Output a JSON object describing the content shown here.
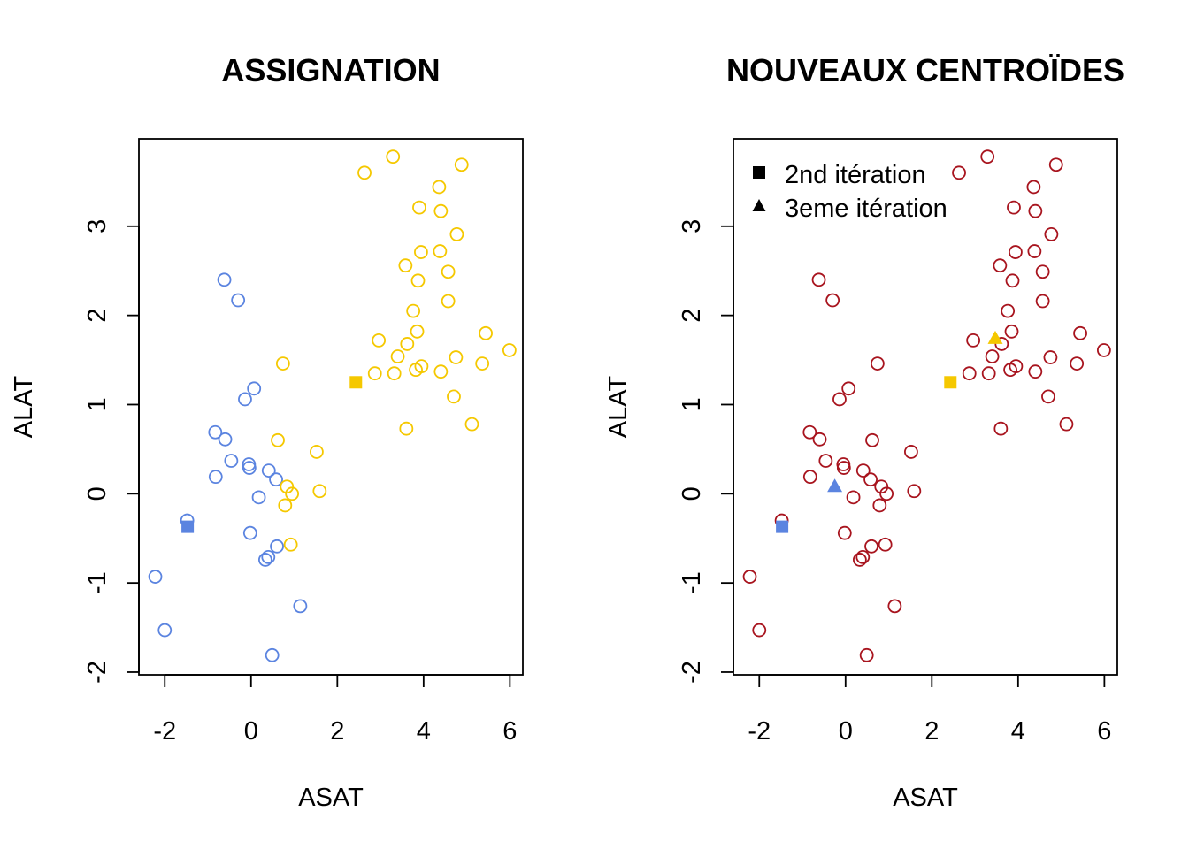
{
  "colors": {
    "cluster1": "#5B84E0",
    "cluster2": "#F5C800",
    "uniform": "#A8141E",
    "axis": "#000000"
  },
  "shared": {
    "xlabel": "ASAT",
    "ylabel": "ALAT",
    "xlim": [
      -2.6,
      6.3
    ],
    "ylim": [
      -2.03,
      3.98
    ],
    "xticks": [
      -2,
      0,
      2,
      4,
      6
    ],
    "yticks": [
      -2,
      -1,
      0,
      1,
      2,
      3
    ],
    "points": [
      [
        -2.22,
        -0.93,
        1
      ],
      [
        -2.0,
        -1.53,
        1
      ],
      [
        -1.48,
        -0.3,
        1
      ],
      [
        -0.62,
        2.4,
        1
      ],
      [
        -0.3,
        2.17,
        1
      ],
      [
        -0.83,
        0.69,
        1
      ],
      [
        -0.6,
        0.61,
        1
      ],
      [
        -0.82,
        0.19,
        1
      ],
      [
        -0.46,
        0.37,
        1
      ],
      [
        -0.05,
        0.33,
        1
      ],
      [
        -0.04,
        0.29,
        1
      ],
      [
        -0.14,
        1.06,
        1
      ],
      [
        0.07,
        1.18,
        1
      ],
      [
        0.18,
        -0.04,
        1
      ],
      [
        0.41,
        0.26,
        1
      ],
      [
        0.58,
        0.16,
        1
      ],
      [
        -0.02,
        -0.44,
        1
      ],
      [
        0.6,
        -0.59,
        1
      ],
      [
        0.33,
        -0.74,
        1
      ],
      [
        0.4,
        -0.71,
        1
      ],
      [
        1.14,
        -1.26,
        1
      ],
      [
        0.49,
        -1.81,
        1
      ],
      [
        0.74,
        1.46,
        2
      ],
      [
        0.62,
        0.6,
        2
      ],
      [
        1.52,
        0.47,
        2
      ],
      [
        1.59,
        0.03,
        2
      ],
      [
        0.83,
        0.08,
        2
      ],
      [
        0.95,
        0.0,
        2
      ],
      [
        0.79,
        -0.13,
        2
      ],
      [
        0.92,
        -0.57,
        2
      ],
      [
        2.63,
        3.6,
        2
      ],
      [
        3.29,
        3.78,
        2
      ],
      [
        4.88,
        3.69,
        2
      ],
      [
        4.36,
        3.44,
        2
      ],
      [
        3.9,
        3.21,
        2
      ],
      [
        4.4,
        3.17,
        2
      ],
      [
        4.77,
        2.91,
        2
      ],
      [
        3.94,
        2.71,
        2
      ],
      [
        4.38,
        2.72,
        2
      ],
      [
        3.58,
        2.56,
        2
      ],
      [
        4.57,
        2.49,
        2
      ],
      [
        3.87,
        2.39,
        2
      ],
      [
        4.57,
        2.16,
        2
      ],
      [
        3.76,
        2.05,
        2
      ],
      [
        5.44,
        1.8,
        2
      ],
      [
        3.85,
        1.82,
        2
      ],
      [
        2.96,
        1.72,
        2
      ],
      [
        3.62,
        1.68,
        2
      ],
      [
        5.99,
        1.61,
        2
      ],
      [
        3.4,
        1.54,
        2
      ],
      [
        4.75,
        1.53,
        2
      ],
      [
        5.36,
        1.46,
        2
      ],
      [
        3.95,
        1.43,
        2
      ],
      [
        3.82,
        1.39,
        2
      ],
      [
        2.87,
        1.35,
        2
      ],
      [
        3.32,
        1.35,
        2
      ],
      [
        4.4,
        1.37,
        2
      ],
      [
        4.7,
        1.09,
        2
      ],
      [
        3.6,
        0.73,
        2
      ],
      [
        5.12,
        0.78,
        2
      ]
    ]
  },
  "panels": [
    {
      "title": "ASSIGNATION",
      "color_mode": "cluster",
      "centroids": [
        {
          "shape": "square",
          "x": -1.47,
          "y": -0.37,
          "cluster": 1
        },
        {
          "shape": "square",
          "x": 2.43,
          "y": 1.25,
          "cluster": 2
        }
      ],
      "legend": null
    },
    {
      "title": "NOUVEAUX CENTROÏDES",
      "color_mode": "uniform",
      "centroids": [
        {
          "shape": "square",
          "x": -1.47,
          "y": -0.37,
          "cluster": 1
        },
        {
          "shape": "square",
          "x": 2.43,
          "y": 1.25,
          "cluster": 2
        },
        {
          "shape": "triangle",
          "x": -0.25,
          "y": 0.08,
          "cluster": 1
        },
        {
          "shape": "triangle",
          "x": 3.47,
          "y": 1.74,
          "cluster": 2
        }
      ],
      "legend": {
        "position": "top-left",
        "items": [
          {
            "shape": "square",
            "label": "2nd itération"
          },
          {
            "shape": "triangle",
            "label": "3eme itération"
          }
        ]
      }
    }
  ],
  "chart_data": [
    {
      "type": "scatter",
      "title": "ASSIGNATION",
      "xlabel": "ASAT",
      "ylabel": "ALAT",
      "xlim": [
        -2.6,
        6.3
      ],
      "ylim": [
        -2.03,
        3.98
      ],
      "grid": false,
      "series": [
        {
          "values": "shared.points (cluster 1, blue open circles)"
        },
        {
          "values": "shared.points (cluster 2, yellow open circles)"
        }
      ],
      "centroids": [
        [
          -1.47,
          -0.37
        ],
        [
          2.43,
          1.25
        ]
      ]
    },
    {
      "type": "scatter",
      "title": "NOUVEAUX CENTROÏDES",
      "xlabel": "ASAT",
      "ylabel": "ALAT",
      "xlim": [
        -2.6,
        6.3
      ],
      "ylim": [
        -2.03,
        3.98
      ],
      "grid": false,
      "legend_position": "top-left",
      "series": [
        {
          "values": "shared.points (all, dark red open circles)"
        },
        {
          "name": "2nd itération",
          "values": [
            [
              -1.47,
              -0.37
            ],
            [
              2.43,
              1.25
            ]
          ]
        },
        {
          "name": "3eme itération",
          "values": [
            [
              -0.25,
              0.08
            ],
            [
              3.47,
              1.74
            ]
          ]
        }
      ]
    }
  ]
}
